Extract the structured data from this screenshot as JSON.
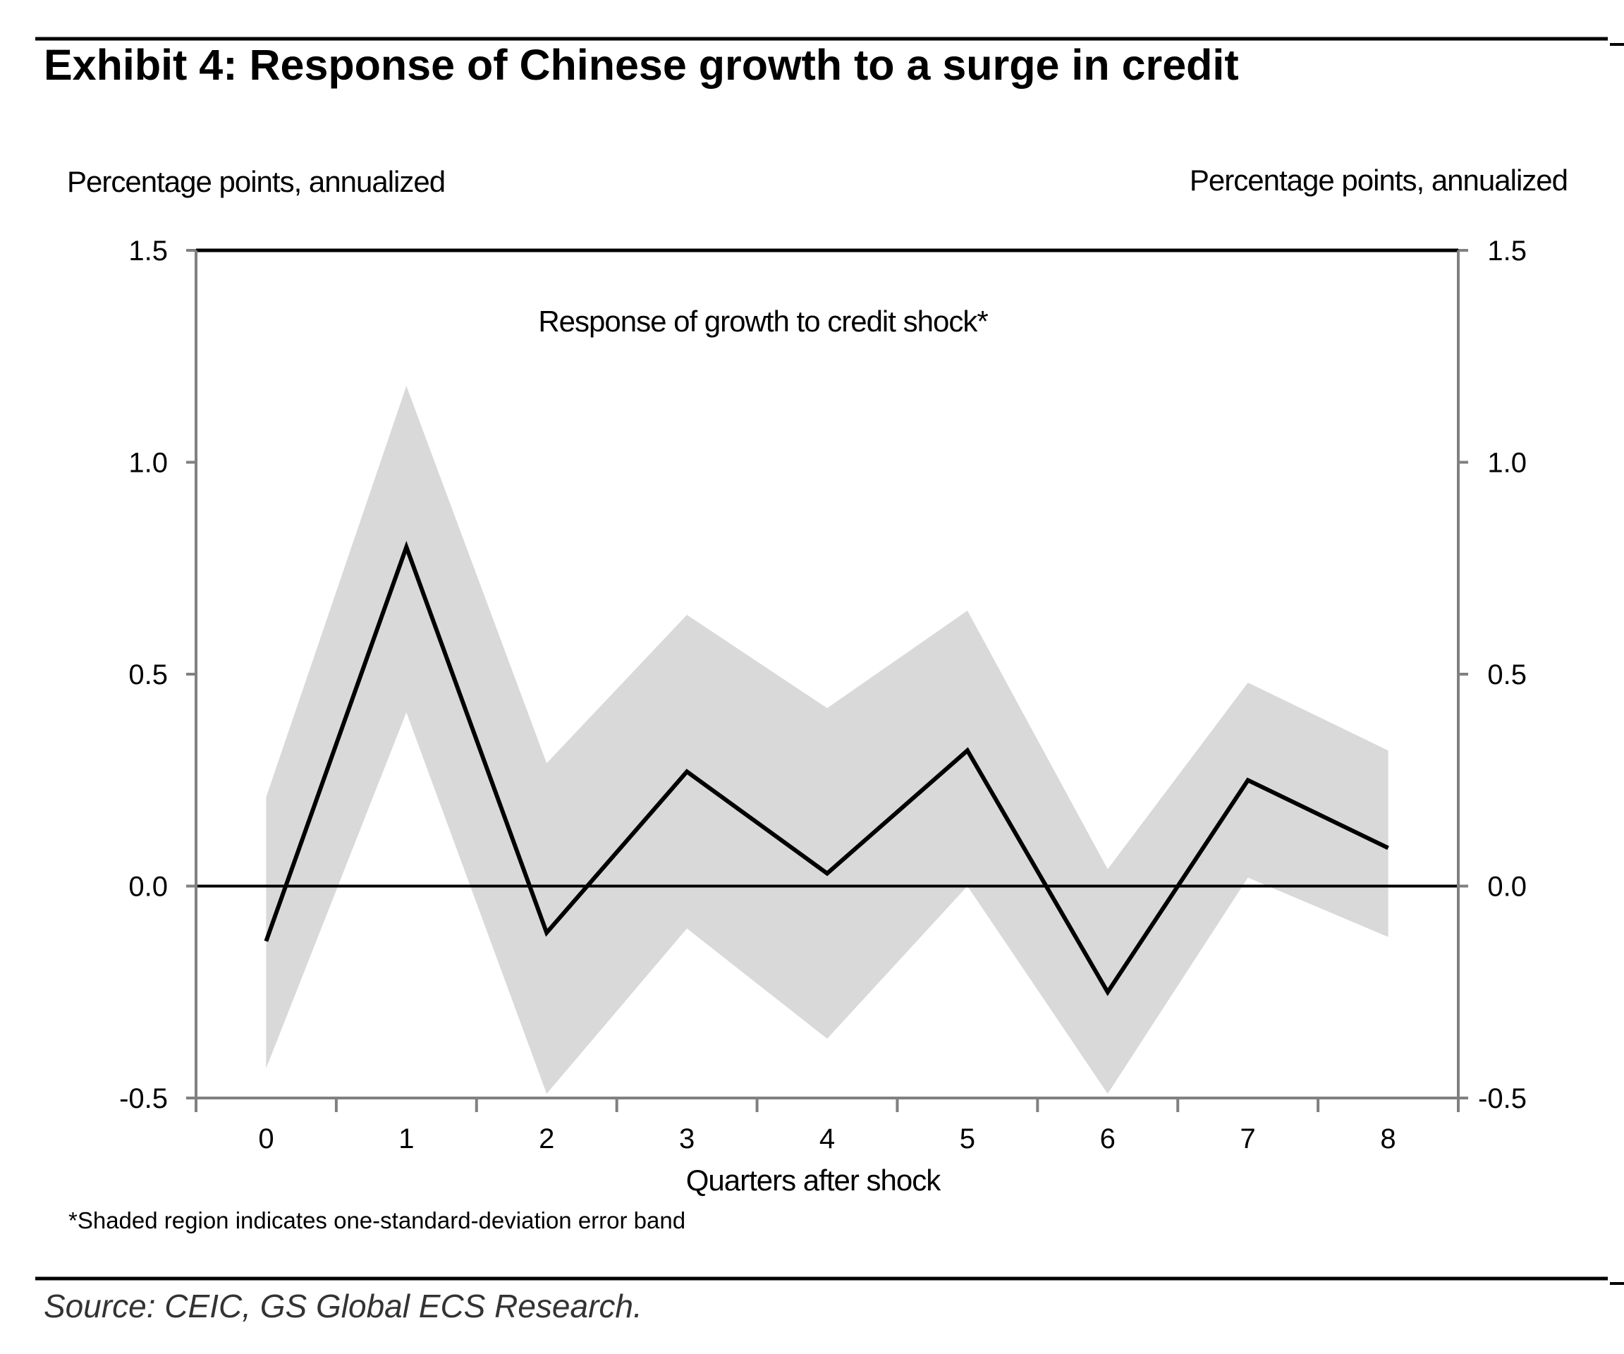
{
  "exhibit_title": "Exhibit 4: Response of Chinese growth to a surge in credit",
  "source": "Source: CEIC, GS Global ECS Research.",
  "footnote": "*Shaded region indicates one-standard-deviation error band",
  "colors": {
    "line": "#000000",
    "band": "#d9d9d9",
    "axis": "#808080",
    "frame": "#000000"
  },
  "chart_data": {
    "type": "line",
    "title": "Response of growth to credit shock*",
    "xlabel": "Quarters after shock",
    "ylabel_left": "Percentage points, annualized",
    "ylabel_right": "Percentage points, annualized",
    "x": [
      0,
      1,
      2,
      3,
      4,
      5,
      6,
      7,
      8
    ],
    "x_tick_labels": [
      "0",
      "1",
      "2",
      "3",
      "4",
      "5",
      "6",
      "7",
      "8"
    ],
    "y_ticks": [
      1.5,
      1.0,
      0.5,
      0.0,
      -0.5
    ],
    "y_tick_labels": [
      "1.5",
      "1.0",
      "0.5",
      "0.0",
      "-0.5"
    ],
    "ylim": [
      -0.5,
      1.5
    ],
    "series": [
      {
        "name": "Response of growth to credit shock",
        "values": [
          -0.13,
          0.8,
          -0.11,
          0.27,
          0.03,
          0.32,
          -0.25,
          0.25,
          0.09
        ]
      }
    ],
    "error_band": {
      "name": "One-standard-deviation error band",
      "upper": [
        0.21,
        1.18,
        0.29,
        0.64,
        0.42,
        0.65,
        0.04,
        0.48,
        0.32
      ],
      "lower": [
        -0.43,
        0.41,
        -0.49,
        -0.1,
        -0.36,
        0.0,
        -0.49,
        0.02,
        -0.12
      ]
    },
    "zero_line": true,
    "legend": "none"
  }
}
